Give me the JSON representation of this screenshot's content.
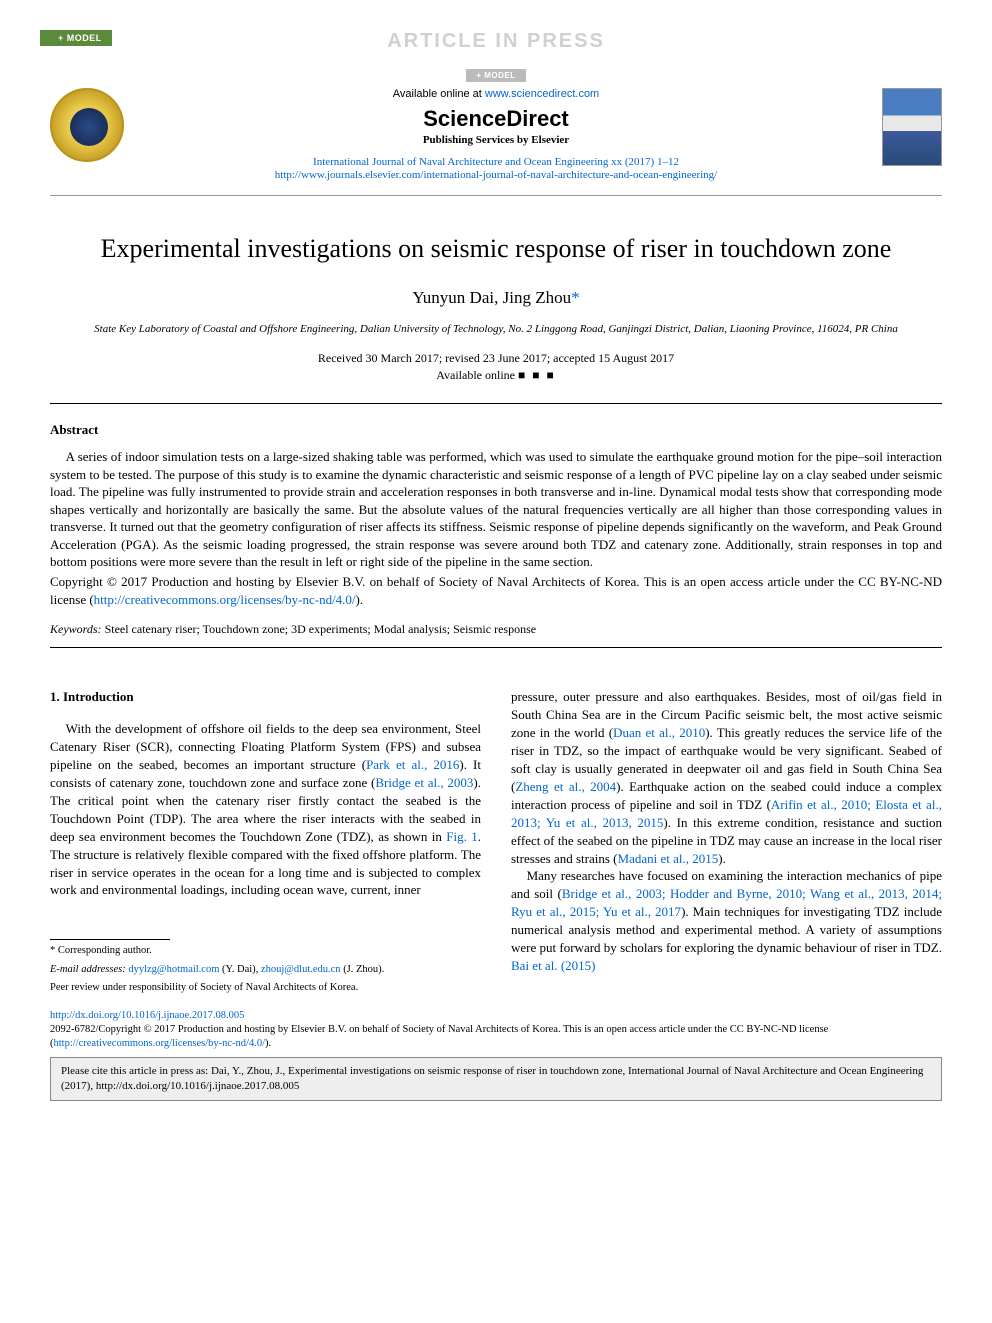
{
  "banner": {
    "model_badge": "+ MODEL",
    "aip": "ARTICLE IN PRESS",
    "sub_model": "+ MODEL"
  },
  "header": {
    "available_prefix": "Available online at ",
    "available_url": "www.sciencedirect.com",
    "sd_logo": "ScienceDirect",
    "pub_services": "Publishing Services by Elsevier",
    "journal_ref": "International Journal of Naval Architecture and Ocean Engineering xx (2017) 1–12",
    "journal_url": "http://www.journals.elsevier.com/international-journal-of-naval-architecture-and-ocean-engineering/"
  },
  "article": {
    "title": "Experimental investigations on seismic response of riser in touchdown zone",
    "author1": "Yunyun Dai",
    "author2": "Jing Zhou",
    "corr_mark": "*",
    "affiliation": "State Key Laboratory of Coastal and Offshore Engineering, Dalian University of Technology, No. 2 Linggong Road, Ganjingzi District, Dalian, Liaoning Province, 116024, PR China",
    "dates": "Received 30 March 2017; revised 23 June 2017; accepted 15 August 2017",
    "avail_online_label": "Available online ",
    "avail_online_blocks": "■ ■ ■"
  },
  "abstract": {
    "head": "Abstract",
    "body": "A series of indoor simulation tests on a large-sized shaking table was performed, which was used to simulate the earthquake ground motion for the pipe–soil interaction system to be tested. The purpose of this study is to examine the dynamic characteristic and seismic response of a length of PVC pipeline lay on a clay seabed under seismic load. The pipeline was fully instrumented to provide strain and acceleration responses in both transverse and in-line. Dynamical modal tests show that corresponding mode shapes vertically and horizontally are basically the same. But the absolute values of the natural frequencies vertically are all higher than those corresponding values in transverse. It turned out that the geometry configuration of riser affects its stiffness. Seismic response of pipeline depends significantly on the waveform, and Peak Ground Acceleration (PGA). As the seismic loading progressed, the strain response was severe around both TDZ and catenary zone. Additionally, strain responses in top and bottom positions were more severe than the result in left or right side of the pipeline in the same section.",
    "copyright_prefix": "Copyright © 2017 Production and hosting by Elsevier B.V. on behalf of Society of Naval Architects of Korea. This is an open access article under the CC BY-NC-ND license (",
    "copyright_url": "http://creativecommons.org/licenses/by-nc-nd/4.0/",
    "copyright_suffix": ")."
  },
  "keywords": {
    "head": "Keywords: ",
    "list": "Steel catenary riser; Touchdown zone; 3D experiments; Modal analysis; Seismic response"
  },
  "body": {
    "section1_head": "1. Introduction",
    "col1_p1_a": "With the development of offshore oil fields to the deep sea environment, Steel Catenary Riser (SCR), connecting Floating Platform System (FPS) and subsea pipeline on the seabed, becomes an important structure (",
    "col1_p1_cite1": "Park et al., 2016",
    "col1_p1_b": "). It consists of catenary zone, touchdown zone and surface zone (",
    "col1_p1_cite2": "Bridge et al., 2003",
    "col1_p1_c": "). The critical point when the catenary riser firstly contact the seabed is the Touchdown Point (TDP). The area where the riser interacts with the seabed in deep sea environment becomes the Touchdown Zone (TDZ), as shown in ",
    "col1_p1_cite3": "Fig. 1",
    "col1_p1_d": ". The structure is relatively flexible compared with the fixed offshore platform. The riser in service operates in the ocean for a long time and is subjected to complex work and environmental loadings, including ocean wave, current, inner",
    "col2_p1_a": "pressure, outer pressure and also earthquakes. Besides, most of oil/gas field in South China Sea are in the Circum Pacific seismic belt, the most active seismic zone in the world (",
    "col2_p1_cite1": "Duan et al., 2010",
    "col2_p1_b": "). This greatly reduces the service life of the riser in TDZ, so the impact of earthquake would be very significant. Seabed of soft clay is usually generated in deepwater oil and gas field in South China Sea (",
    "col2_p1_cite2": "Zheng et al., 2004",
    "col2_p1_c": "). Earthquake action on the seabed could induce a complex interaction process of pipeline and soil in TDZ (",
    "col2_p1_cite3": "Arifin et al., 2010; Elosta et al., 2013; Yu et al., 2013, 2015",
    "col2_p1_d": "). In this extreme condition, resistance and suction effect of the seabed on the pipeline in TDZ may cause an increase in the local riser stresses and strains (",
    "col2_p1_cite4": "Madani et al., 2015",
    "col2_p1_e": ").",
    "col2_p2_a": "Many researches have focused on examining the interaction mechanics of pipe and soil (",
    "col2_p2_cite1": "Bridge et al., 2003; Hodder and Byrne, 2010; Wang et al., 2013, 2014; Ryu et al., 2015; Yu et al., 2017",
    "col2_p2_b": "). Main techniques for investigating TDZ include numerical analysis method and experimental method. A variety of assumptions were put forward by scholars for exploring the dynamic behaviour of riser in TDZ. ",
    "col2_p2_cite2": "Bai et al. (2015)"
  },
  "footnotes": {
    "corr": "* Corresponding author.",
    "email_label": "E-mail addresses: ",
    "email1": "dyylzg@hotmail.com",
    "email1_name": " (Y. Dai), ",
    "email2": "zhouj@dlut.edu.cn",
    "email2_name": " (J. Zhou).",
    "peer": "Peer review under responsibility of Society of Naval Architects of Korea."
  },
  "footer": {
    "doi": "http://dx.doi.org/10.1016/j.ijnaoe.2017.08.005",
    "issn_line_a": "2092-6782/Copyright © 2017 Production and hosting by Elsevier B.V. on behalf of Society of Naval Architects of Korea. This is an open access article under the CC BY-NC-ND license (",
    "issn_url": "http://creativecommons.org/licenses/by-nc-nd/4.0/",
    "issn_line_b": ").",
    "cite_box": "Please cite this article in press as: Dai, Y., Zhou, J., Experimental investigations on seismic response of riser in touchdown zone, International Journal of Naval Architecture and Ocean Engineering (2017), http://dx.doi.org/10.1016/j.ijnaoe.2017.08.005"
  },
  "colors": {
    "link": "#0066cc",
    "banner_bg": "#5a8a3a",
    "aip_text": "#d0d0d0",
    "citebox_bg": "#eeeeee"
  }
}
